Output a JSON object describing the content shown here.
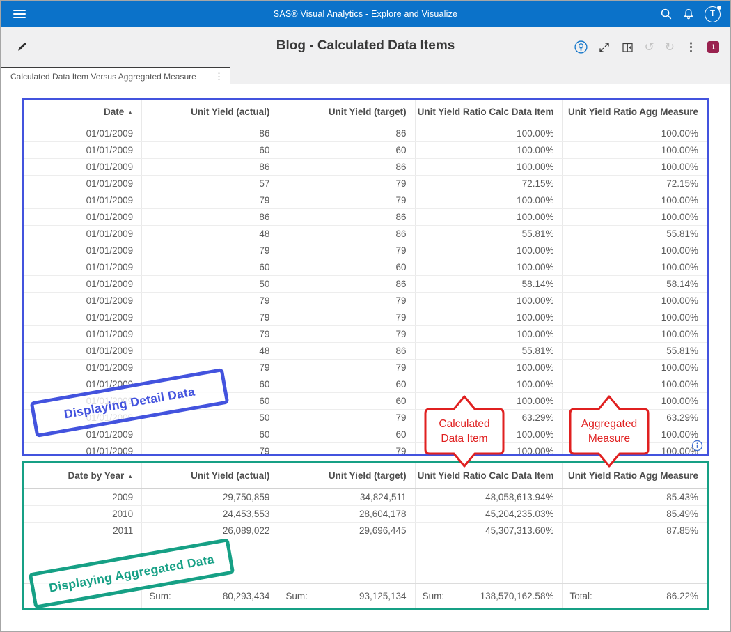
{
  "app_bar": {
    "title": "SAS® Visual Analytics - Explore and Visualize",
    "avatar_initial": "T"
  },
  "toolbar": {
    "title": "Blog - Calculated Data Items",
    "badge_count": "1"
  },
  "tab": {
    "label": "Calculated Data Item Versus Aggregated Measure"
  },
  "icons": {
    "sort_ascending": "▲",
    "kebab": "⋮",
    "undo": "↺",
    "redo": "↻"
  },
  "detail_table": {
    "columns": [
      "Date",
      "Unit Yield (actual)",
      "Unit Yield (target)",
      "Unit Yield Ratio Calc Data Item",
      "Unit Yield Ratio Agg Measure"
    ],
    "sorted_by": "Date",
    "rows": [
      [
        "01/01/2009",
        "86",
        "86",
        "100.00%",
        "100.00%"
      ],
      [
        "01/01/2009",
        "60",
        "60",
        "100.00%",
        "100.00%"
      ],
      [
        "01/01/2009",
        "86",
        "86",
        "100.00%",
        "100.00%"
      ],
      [
        "01/01/2009",
        "57",
        "79",
        "72.15%",
        "72.15%"
      ],
      [
        "01/01/2009",
        "79",
        "79",
        "100.00%",
        "100.00%"
      ],
      [
        "01/01/2009",
        "86",
        "86",
        "100.00%",
        "100.00%"
      ],
      [
        "01/01/2009",
        "48",
        "86",
        "55.81%",
        "55.81%"
      ],
      [
        "01/01/2009",
        "79",
        "79",
        "100.00%",
        "100.00%"
      ],
      [
        "01/01/2009",
        "60",
        "60",
        "100.00%",
        "100.00%"
      ],
      [
        "01/01/2009",
        "50",
        "86",
        "58.14%",
        "58.14%"
      ],
      [
        "01/01/2009",
        "79",
        "79",
        "100.00%",
        "100.00%"
      ],
      [
        "01/01/2009",
        "79",
        "79",
        "100.00%",
        "100.00%"
      ],
      [
        "01/01/2009",
        "79",
        "79",
        "100.00%",
        "100.00%"
      ],
      [
        "01/01/2009",
        "48",
        "86",
        "55.81%",
        "55.81%"
      ],
      [
        "01/01/2009",
        "79",
        "79",
        "100.00%",
        "100.00%"
      ],
      [
        "01/01/2009",
        "60",
        "60",
        "100.00%",
        "100.00%"
      ],
      [
        "01/01/2009",
        "60",
        "60",
        "100.00%",
        "100.00%"
      ],
      [
        "01/01/2009",
        "50",
        "79",
        "63.29%",
        "63.29%"
      ],
      [
        "01/01/2009",
        "60",
        "60",
        "100.00%",
        "100.00%"
      ],
      [
        "01/01/2009",
        "79",
        "79",
        "100.00%",
        "100.00%"
      ]
    ]
  },
  "aggregated_table": {
    "columns": [
      "Date by Year",
      "Unit Yield (actual)",
      "Unit Yield (target)",
      "Unit Yield Ratio Calc Data Item",
      "Unit Yield Ratio Agg Measure"
    ],
    "sorted_by": "Date by Year",
    "rows": [
      [
        "2009",
        "29,750,859",
        "34,824,511",
        "48,058,613.94%",
        "85.43%"
      ],
      [
        "2010",
        "24,453,553",
        "28,604,178",
        "45,204,235.03%",
        "85.49%"
      ],
      [
        "2011",
        "26,089,022",
        "29,696,445",
        "45,307,313.60%",
        "87.85%"
      ]
    ],
    "footer": [
      {
        "label": "",
        "value": ""
      },
      {
        "label": "Sum:",
        "value": "80,293,434"
      },
      {
        "label": "Sum:",
        "value": "93,125,134"
      },
      {
        "label": "Sum:",
        "value": "138,570,162.58%"
      },
      {
        "label": "Total:",
        "value": "86.22%"
      }
    ]
  },
  "annotations": {
    "detail_stamp": "Displaying Detail Data",
    "aggregated_stamp": "Displaying Aggregated Data",
    "callout_calc": {
      "line1": "Calculated",
      "line2": "Data Item"
    },
    "callout_agg": {
      "line1": "Aggregated",
      "line2": "Measure"
    }
  },
  "colors": {
    "appbar_blue": "#0b72c9",
    "detail_border_blue": "#4353de",
    "aggregated_border_teal": "#16a085",
    "annotation_red": "#e02020",
    "badge_maroon": "#99224f"
  }
}
